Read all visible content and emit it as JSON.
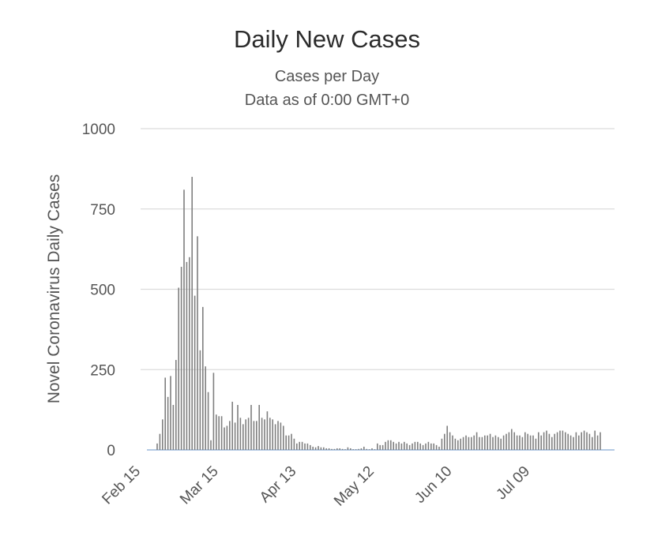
{
  "chart_data": {
    "type": "bar",
    "title": "Daily New Cases",
    "subtitle_lines": [
      "Cases per Day",
      "Data as of 0:00 GMT+0"
    ],
    "ylabel": "Novel Coronavirus Daily Cases",
    "xlabel": "",
    "ylim": [
      0,
      1000
    ],
    "y_ticks": [
      0,
      250,
      500,
      750,
      1000
    ],
    "x_tick_labels": [
      "Feb 15",
      "Mar 15",
      "Apr 13",
      "May 12",
      "Jun 10",
      "Jul 09"
    ],
    "x_start_label": "Feb 15",
    "grid": true,
    "legend": "none",
    "series": [
      {
        "values": [
          0,
          0,
          0,
          0,
          0,
          0,
          20,
          50,
          95,
          225,
          165,
          230,
          140,
          280,
          505,
          570,
          810,
          585,
          600,
          850,
          480,
          665,
          310,
          445,
          260,
          180,
          30,
          240,
          110,
          105,
          105,
          70,
          75,
          90,
          150,
          85,
          140,
          100,
          80,
          95,
          100,
          140,
          90,
          90,
          140,
          100,
          95,
          120,
          100,
          95,
          80,
          90,
          85,
          75,
          45,
          45,
          50,
          35,
          20,
          25,
          25,
          20,
          20,
          15,
          10,
          8,
          12,
          8,
          8,
          5,
          5,
          3,
          3,
          5,
          5,
          3,
          2,
          8,
          5,
          2,
          2,
          3,
          5,
          10,
          3,
          2,
          5,
          2,
          20,
          15,
          15,
          25,
          30,
          30,
          25,
          20,
          25,
          20,
          25,
          20,
          15,
          20,
          25,
          25,
          20,
          15,
          20,
          25,
          20,
          20,
          15,
          10,
          35,
          50,
          75,
          55,
          45,
          35,
          30,
          35,
          40,
          45,
          40,
          40,
          45,
          55,
          40,
          40,
          45,
          45,
          50,
          40,
          45,
          40,
          35,
          45,
          50,
          55,
          65,
          55,
          45,
          45,
          40,
          55,
          50,
          45,
          45,
          35,
          55,
          45,
          55,
          60,
          50,
          40,
          50,
          55,
          60,
          60,
          55,
          50,
          45,
          40,
          55,
          45,
          55,
          60,
          55,
          50,
          40,
          60,
          45,
          55
        ]
      }
    ],
    "bar_color": "#7f7f7f",
    "grid_color": "#dcdcdc",
    "baseline_color": "#9bb8dc"
  }
}
